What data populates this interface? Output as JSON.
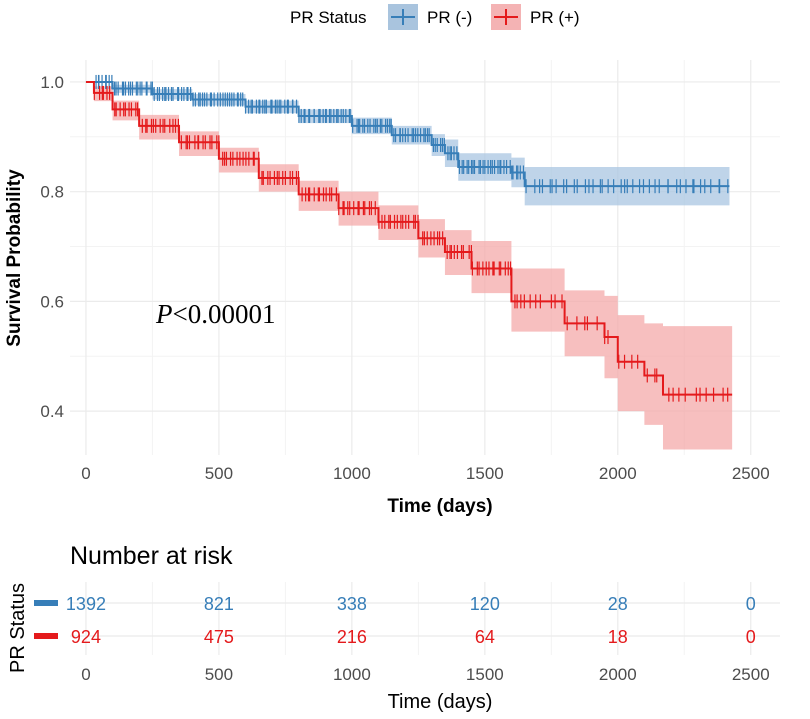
{
  "colors": {
    "pr_neg": "#377EB8",
    "pr_pos": "#E41A1C",
    "grid": "#ebebeb"
  },
  "legend": {
    "title": "PR Status",
    "items": [
      {
        "label": "PR (-)",
        "color": "#377EB8"
      },
      {
        "label": "PR (+)",
        "color": "#E41A1C"
      }
    ]
  },
  "p_value": {
    "prefix": "P",
    "text": "<0.00001"
  },
  "chart_data": {
    "type": "line",
    "subtype": "kaplan-meier",
    "xlabel": "Time (days)",
    "ylabel": "Survival Probability",
    "xlim": [
      -60,
      2610
    ],
    "ylim": [
      0.32,
      1.04
    ],
    "x_ticks": [
      0,
      500,
      1000,
      1500,
      2000,
      2500
    ],
    "y_ticks": [
      0.4,
      0.6,
      0.8,
      1.0
    ],
    "y_tick_labels": [
      "0.4",
      "0.6",
      "0.8",
      "1.0"
    ],
    "series": [
      {
        "name": "PR (-)",
        "color": "#377EB8",
        "curve": [
          [
            0,
            1.0
          ],
          [
            100,
            0.988
          ],
          [
            250,
            0.978
          ],
          [
            400,
            0.968
          ],
          [
            600,
            0.955
          ],
          [
            800,
            0.938
          ],
          [
            1000,
            0.92
          ],
          [
            1150,
            0.903
          ],
          [
            1300,
            0.885
          ],
          [
            1350,
            0.87
          ],
          [
            1400,
            0.845
          ],
          [
            1600,
            0.835
          ],
          [
            1650,
            0.81
          ],
          [
            2420,
            0.81
          ]
        ],
        "ci_upper": [
          [
            0,
            1.0
          ],
          [
            100,
            0.995
          ],
          [
            250,
            0.987
          ],
          [
            400,
            0.978
          ],
          [
            600,
            0.966
          ],
          [
            800,
            0.95
          ],
          [
            1000,
            0.935
          ],
          [
            1150,
            0.92
          ],
          [
            1300,
            0.905
          ],
          [
            1350,
            0.895
          ],
          [
            1400,
            0.87
          ],
          [
            1600,
            0.862
          ],
          [
            1650,
            0.845
          ],
          [
            2420,
            0.845
          ]
        ],
        "ci_lower": [
          [
            0,
            1.0
          ],
          [
            100,
            0.98
          ],
          [
            250,
            0.968
          ],
          [
            400,
            0.957
          ],
          [
            600,
            0.943
          ],
          [
            800,
            0.925
          ],
          [
            1000,
            0.905
          ],
          [
            1150,
            0.886
          ],
          [
            1300,
            0.865
          ],
          [
            1350,
            0.845
          ],
          [
            1400,
            0.82
          ],
          [
            1600,
            0.808
          ],
          [
            1650,
            0.775
          ],
          [
            2420,
            0.775
          ]
        ],
        "censor_ranges": [
          [
            30,
            1650,
            180
          ],
          [
            1650,
            2420,
            40
          ]
        ]
      },
      {
        "name": "PR (+)",
        "color": "#E41A1C",
        "curve": [
          [
            0,
            1.0
          ],
          [
            30,
            0.98
          ],
          [
            100,
            0.95
          ],
          [
            200,
            0.92
          ],
          [
            350,
            0.89
          ],
          [
            500,
            0.86
          ],
          [
            650,
            0.825
          ],
          [
            800,
            0.795
          ],
          [
            950,
            0.77
          ],
          [
            1100,
            0.745
          ],
          [
            1250,
            0.715
          ],
          [
            1350,
            0.69
          ],
          [
            1450,
            0.66
          ],
          [
            1600,
            0.6
          ],
          [
            1800,
            0.56
          ],
          [
            1950,
            0.535
          ],
          [
            2000,
            0.49
          ],
          [
            2100,
            0.465
          ],
          [
            2170,
            0.43
          ],
          [
            2430,
            0.43
          ]
        ],
        "ci_upper": [
          [
            0,
            1.0
          ],
          [
            30,
            0.992
          ],
          [
            100,
            0.966
          ],
          [
            200,
            0.94
          ],
          [
            350,
            0.91
          ],
          [
            500,
            0.88
          ],
          [
            650,
            0.85
          ],
          [
            800,
            0.82
          ],
          [
            950,
            0.8
          ],
          [
            1100,
            0.775
          ],
          [
            1250,
            0.75
          ],
          [
            1350,
            0.73
          ],
          [
            1450,
            0.71
          ],
          [
            1600,
            0.66
          ],
          [
            1800,
            0.62
          ],
          [
            1950,
            0.61
          ],
          [
            2000,
            0.575
          ],
          [
            2100,
            0.56
          ],
          [
            2170,
            0.555
          ],
          [
            2430,
            0.555
          ]
        ],
        "ci_lower": [
          [
            0,
            1.0
          ],
          [
            30,
            0.965
          ],
          [
            100,
            0.93
          ],
          [
            200,
            0.895
          ],
          [
            350,
            0.865
          ],
          [
            500,
            0.835
          ],
          [
            650,
            0.8
          ],
          [
            800,
            0.765
          ],
          [
            950,
            0.738
          ],
          [
            1100,
            0.712
          ],
          [
            1250,
            0.68
          ],
          [
            1350,
            0.648
          ],
          [
            1450,
            0.615
          ],
          [
            1600,
            0.545
          ],
          [
            1800,
            0.5
          ],
          [
            1950,
            0.46
          ],
          [
            2000,
            0.4
          ],
          [
            2100,
            0.375
          ],
          [
            2170,
            0.33
          ],
          [
            2430,
            0.33
          ]
        ],
        "censor_ranges": [
          [
            30,
            1650,
            140
          ],
          [
            1650,
            2430,
            30
          ]
        ]
      }
    ],
    "risk_table": {
      "title": "Number at risk",
      "ylabel": "PR Status",
      "xlabel": "Time (days)",
      "times": [
        0,
        500,
        1000,
        1500,
        2000,
        2500
      ],
      "rows": [
        {
          "name": "PR (-)",
          "color": "#377EB8",
          "values": [
            1392,
            821,
            338,
            120,
            28,
            0
          ]
        },
        {
          "name": "PR (+)",
          "color": "#E41A1C",
          "values": [
            924,
            475,
            216,
            64,
            18,
            0
          ]
        }
      ]
    }
  }
}
